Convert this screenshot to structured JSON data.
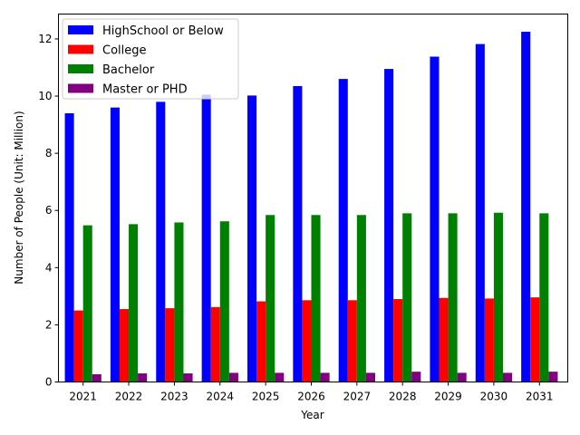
{
  "chart_data": {
    "type": "bar",
    "title": "",
    "xlabel": "Year",
    "ylabel": "Number of People (Unit: Million)",
    "ylim": [
      0,
      12.87
    ],
    "yticks": [
      0,
      2,
      4,
      6,
      8,
      10,
      12
    ],
    "grid": false,
    "legend_position": "top-left",
    "categories": [
      "2021",
      "2022",
      "2023",
      "2024",
      "2025",
      "2026",
      "2027",
      "2028",
      "2029",
      "2030",
      "2031"
    ],
    "series": [
      {
        "name": "HighSchool or Below",
        "color": "#0000ff",
        "values": [
          9.4,
          9.6,
          9.8,
          10.05,
          10.02,
          10.35,
          10.6,
          10.95,
          11.38,
          11.82,
          12.25
        ]
      },
      {
        "name": "College",
        "color": "#ff0000",
        "values": [
          2.5,
          2.55,
          2.58,
          2.62,
          2.82,
          2.86,
          2.86,
          2.9,
          2.94,
          2.92,
          2.96
        ]
      },
      {
        "name": "Bachelor",
        "color": "#008000",
        "values": [
          5.48,
          5.52,
          5.58,
          5.62,
          5.84,
          5.84,
          5.84,
          5.9,
          5.9,
          5.92,
          5.9
        ]
      },
      {
        "name": "Master or PHD",
        "color": "#800080",
        "values": [
          0.27,
          0.3,
          0.3,
          0.32,
          0.32,
          0.32,
          0.32,
          0.36,
          0.32,
          0.32,
          0.36
        ]
      }
    ]
  }
}
